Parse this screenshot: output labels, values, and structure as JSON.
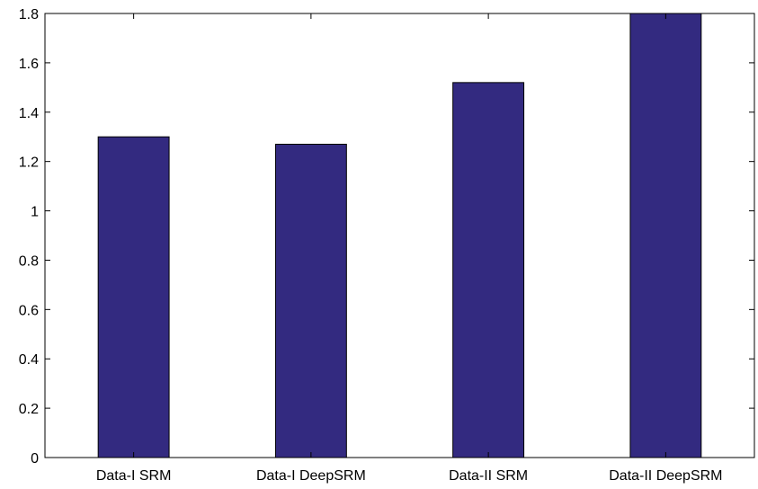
{
  "chart_data": {
    "type": "bar",
    "categories": [
      "Data-I SRM",
      "Data-I DeepSRM",
      "Data-II SRM",
      "Data-II DeepSRM"
    ],
    "values": [
      1.3,
      1.27,
      1.52,
      1.8
    ],
    "yticks": [
      "0",
      "0.2",
      "0.4",
      "0.6",
      "0.8",
      "1",
      "1.2",
      "1.4",
      "1.6",
      "1.8"
    ],
    "ylim": [
      0,
      1.8
    ],
    "grid": false,
    "colors": {
      "bar_fill": "#332a80",
      "bar_stroke": "#000000",
      "axis": "#000000"
    }
  }
}
